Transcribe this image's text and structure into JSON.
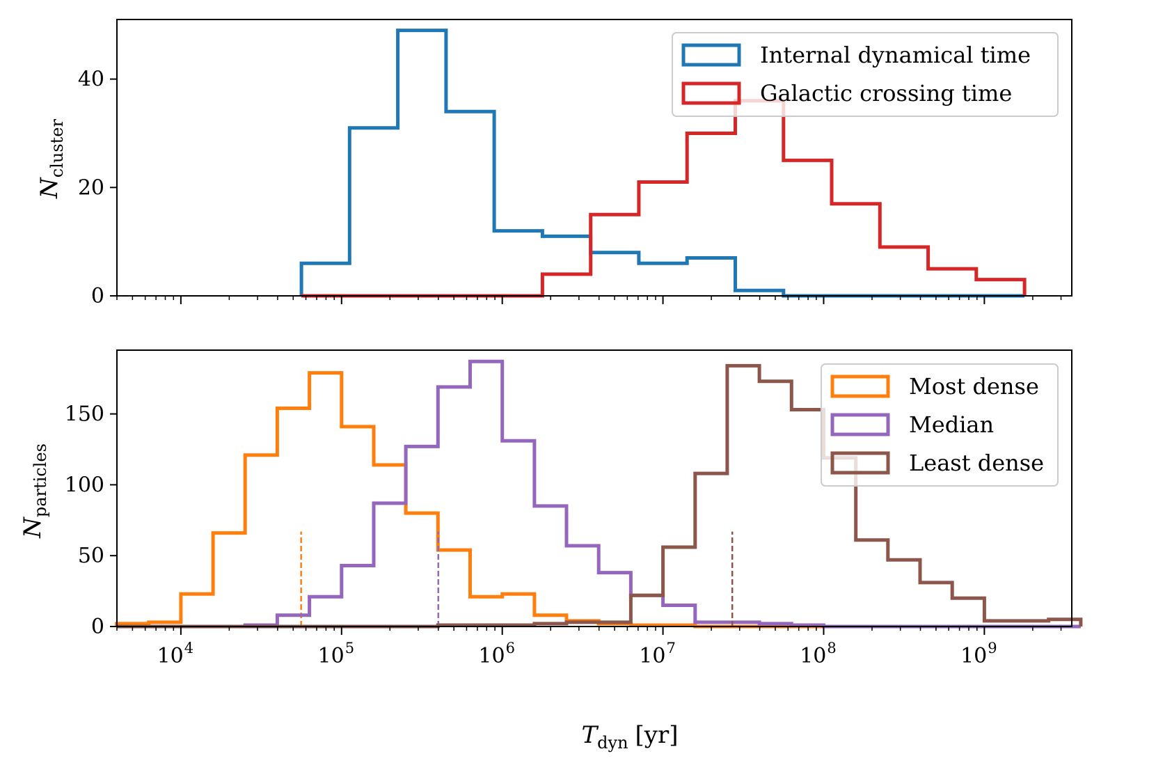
{
  "chart_data": [
    {
      "type": "histogram",
      "panel": "top",
      "ylabel": "N",
      "ylabel_sub": "cluster",
      "xscale": "log",
      "xlim": [
        4000,
        3500000000
      ],
      "ylim": [
        0,
        51
      ],
      "yticks": [
        0,
        20,
        40
      ],
      "xticks_major": [
        10000,
        100000,
        1000000,
        10000000,
        100000000,
        1000000000
      ],
      "tick_labels_shown": false,
      "legend": "top-right",
      "series": [
        {
          "name": "Internal dynamical time",
          "color": "#1f77b4",
          "bin_edges": [
            56234,
            112202,
            223872,
            446684,
            891251,
            1778279,
            3548134,
            7079458,
            14125375,
            28183829,
            56234133,
            112201845,
            223872114,
            446683592,
            891250938,
            1778279410
          ],
          "counts": [
            6,
            31,
            49,
            34,
            12,
            11,
            8,
            6,
            7,
            1,
            0,
            0,
            0,
            0,
            0
          ]
        },
        {
          "name": "Galactic crossing time",
          "color": "#d62728",
          "bin_edges": [
            56234,
            112202,
            223872,
            446684,
            891251,
            1778279,
            3548134,
            7079458,
            14125375,
            28183829,
            56234133,
            112201845,
            223872114,
            446683592,
            891250938,
            1778279410
          ],
          "counts": [
            0,
            0,
            0,
            0,
            0,
            4,
            15,
            21,
            30,
            36,
            25,
            17,
            9,
            5,
            3
          ]
        }
      ]
    },
    {
      "type": "histogram",
      "panel": "bottom",
      "xlabel": "T",
      "xlabel_sub": "dyn",
      "xlabel_unit": "[yr]",
      "ylabel": "N",
      "ylabel_sub": "particles",
      "xscale": "log",
      "xlim": [
        4000,
        3500000000
      ],
      "ylim": [
        0,
        195
      ],
      "yticks": [
        0,
        50,
        100,
        150
      ],
      "xticks_major": [
        10000,
        100000,
        1000000,
        10000000,
        100000000,
        1000000000
      ],
      "xtick_labels": [
        "10",
        "10",
        "10",
        "10",
        "10",
        "10"
      ],
      "xtick_exponents": [
        "4",
        "5",
        "6",
        "7",
        "8",
        "9"
      ],
      "legend": "top-right",
      "series": [
        {
          "name": "Most dense",
          "color": "#ff7f0e",
          "bin_edges": [
            3981,
            6310,
            10000,
            15849,
            25119,
            39811,
            63096,
            100000,
            158489,
            251189,
            398107,
            630957,
            1000000,
            1584893,
            2511886,
            3981072,
            6309573,
            10000000,
            15848932,
            25118864,
            39810717,
            63095734,
            100000000,
            158489319,
            251188643,
            398107171,
            630957344,
            1000000000,
            1584893192,
            2511886432,
            3981071706
          ],
          "counts": [
            2,
            3,
            23,
            66,
            121,
            154,
            179,
            141,
            114,
            80,
            54,
            21,
            23,
            8,
            4,
            2,
            1,
            1,
            0,
            0,
            0,
            0,
            0,
            0,
            0,
            0,
            0,
            0,
            0,
            0
          ],
          "median": 56000
        },
        {
          "name": "Median",
          "color": "#9467bd",
          "bin_edges": [
            3981,
            6310,
            10000,
            15849,
            25119,
            39811,
            63096,
            100000,
            158489,
            251189,
            398107,
            630957,
            1000000,
            1584893,
            2511886,
            3981072,
            6309573,
            10000000,
            15848932,
            25118864,
            39810717,
            63095734,
            100000000,
            158489319,
            251188643,
            398107171,
            630957344,
            1000000000,
            1584893192,
            2511886432,
            3981071706
          ],
          "counts": [
            0,
            0,
            0,
            0,
            1,
            8,
            21,
            43,
            87,
            127,
            169,
            187,
            131,
            85,
            57,
            38,
            22,
            15,
            3,
            3,
            2,
            1,
            0,
            0,
            0,
            0,
            0,
            0,
            0,
            0
          ],
          "median": 400000
        },
        {
          "name": "Least dense",
          "color": "#8c564b",
          "bin_edges": [
            3981,
            6310,
            10000,
            15849,
            25119,
            39811,
            63096,
            100000,
            158489,
            251189,
            398107,
            630957,
            1000000,
            1584893,
            2511886,
            3981072,
            6309573,
            10000000,
            15848932,
            25118864,
            39810717,
            63095734,
            100000000,
            158489319,
            251188643,
            398107171,
            630957344,
            1000000000,
            1584893192,
            2511886432,
            3981071706
          ],
          "counts": [
            0,
            0,
            0,
            0,
            0,
            0,
            0,
            0,
            0,
            0,
            1,
            1,
            1,
            2,
            3,
            3,
            22,
            56,
            108,
            184,
            173,
            153,
            119,
            61,
            47,
            31,
            20,
            4,
            4,
            5
          ],
          "median": 27000000
        }
      ]
    }
  ]
}
